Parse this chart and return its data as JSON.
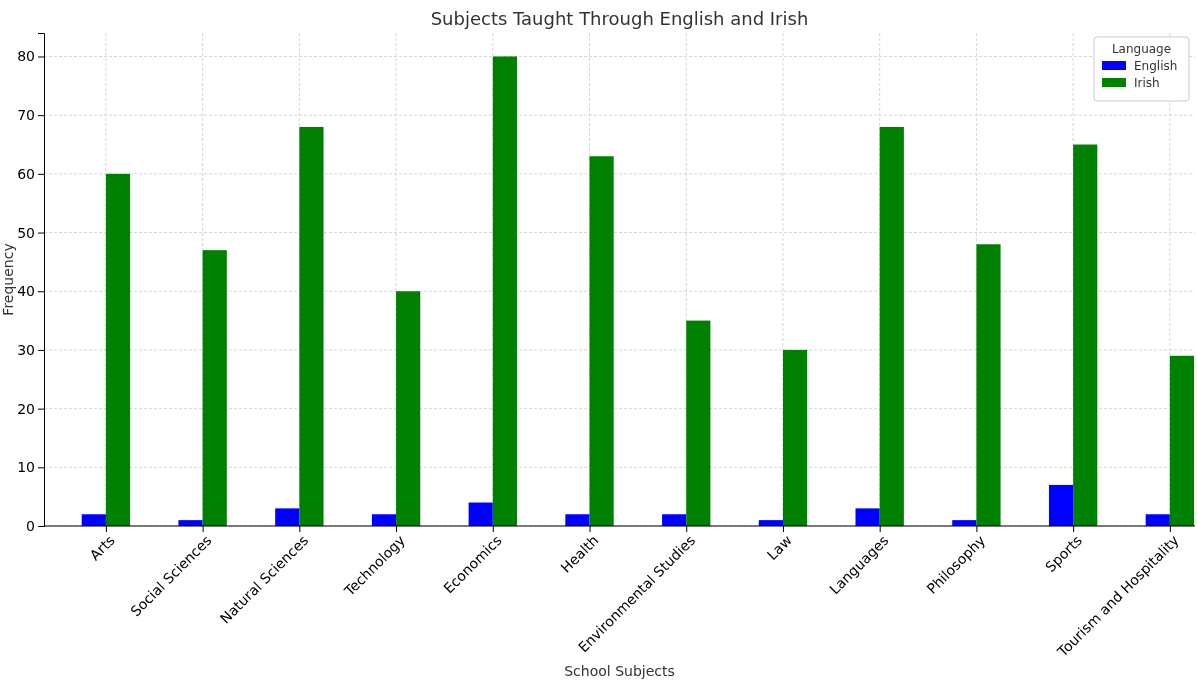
{
  "chart_data": {
    "type": "bar",
    "title": "Subjects Taught Through English and Irish",
    "xlabel": "School Subjects",
    "ylabel": "Frequency",
    "legend_title": "Language",
    "categories": [
      "Arts",
      "Social Sciences",
      "Natural Sciences",
      "Technology",
      "Economics",
      "Health",
      "Environmental Studies",
      "Law",
      "Languages",
      "Philosophy",
      "Sports",
      "Tourism and Hospitality"
    ],
    "series": [
      {
        "name": "English",
        "color": "#0000ff",
        "values": [
          2,
          1,
          3,
          2,
          4,
          2,
          2,
          1,
          3,
          1,
          7,
          2
        ]
      },
      {
        "name": "Irish",
        "color": "#008000",
        "values": [
          60,
          47,
          68,
          40,
          80,
          63,
          35,
          30,
          68,
          48,
          65,
          29
        ]
      }
    ],
    "ylim": [
      0,
      84
    ],
    "yticks": [
      0,
      10,
      20,
      30,
      40,
      50,
      60,
      70,
      80
    ],
    "grid": true,
    "legend": "top right"
  }
}
